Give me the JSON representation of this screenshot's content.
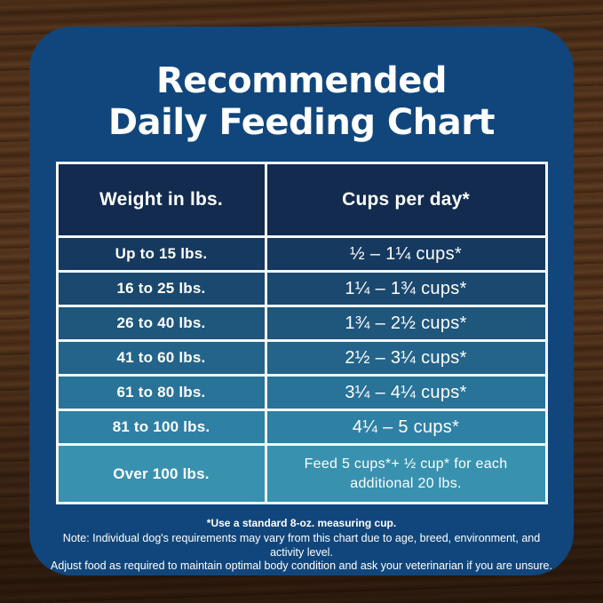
{
  "card": {
    "title_line1": "Recommended",
    "title_line2": "Daily Feeding Chart"
  },
  "table": {
    "headers": [
      "Weight in lbs.",
      "Cups per day*"
    ],
    "rows": [
      {
        "weight": "Up to 15 lbs.",
        "cups": "½ – 1¼ cups*"
      },
      {
        "weight": "16 to 25 lbs.",
        "cups": "1¼ – 1¾ cups*"
      },
      {
        "weight": "26 to 40 lbs.",
        "cups": "1¾ – 2½ cups*"
      },
      {
        "weight": "41 to 60 lbs.",
        "cups": "2½ – 3¼ cups*"
      },
      {
        "weight": "61 to 80 lbs.",
        "cups": "3¼ – 4¼ cups*"
      },
      {
        "weight": "81 to 100 lbs.",
        "cups": "4¼ – 5 cups*"
      },
      {
        "weight": "Over 100 lbs.",
        "cups": "Feed 5 cups*+ ½ cup* for each additional 20 lbs."
      }
    ],
    "header_color": "#122B4E",
    "row_colors": [
      "#16395F",
      "#1A486E",
      "#1F567C",
      "#24648A",
      "#297298",
      "#2E80A5",
      "#3892AF"
    ],
    "border_color": "#F2F7FA"
  },
  "footnotes": {
    "line1": "*Use a standard 8-oz. measuring cup.",
    "line2": "Note: Individual dog's requirements may vary from this chart due to age, breed, environment, and activity level.",
    "line3": "Adjust food as required to maintain optimal body condition and ask your veterinarian if you are unsure."
  },
  "colors": {
    "card_bg": "#10467C",
    "text": "#FFFFFF"
  },
  "chart_data": {
    "type": "table",
    "title": "Recommended Daily Feeding Chart",
    "columns": [
      "Weight in lbs.",
      "Cups per day*"
    ],
    "rows": [
      [
        "Up to 15 lbs.",
        "½ – 1¼ cups*"
      ],
      [
        "16 to 25 lbs.",
        "1¼ – 1¾ cups*"
      ],
      [
        "26 to 40 lbs.",
        "1¾ – 2½ cups*"
      ],
      [
        "41 to 60 lbs.",
        "2½ – 3¼ cups*"
      ],
      [
        "61 to 80 lbs.",
        "3¼ – 4¼ cups*"
      ],
      [
        "81 to 100 lbs.",
        "4¼ – 5 cups*"
      ],
      [
        "Over 100 lbs.",
        "Feed 5 cups*+ ½ cup* for each additional 20 lbs."
      ]
    ],
    "notes": [
      "*Use a standard 8-oz. measuring cup.",
      "Note: Individual dog's requirements may vary from this chart due to age, breed, environment, and activity level. Adjust food as required to maintain optimal body condition and ask your veterinarian if you are unsure."
    ]
  }
}
